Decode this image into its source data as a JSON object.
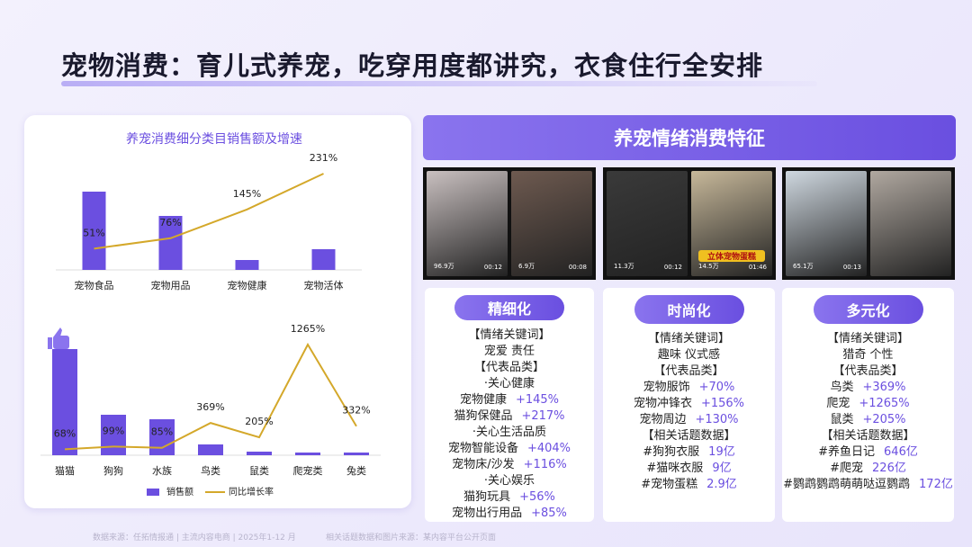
{
  "title": "宠物消费：育儿式养宠，吃穿用度都讲究，衣食住行全安排",
  "chart_data": [
    {
      "type": "bar",
      "title": "养宠消费细分类目销售额及增速",
      "categories": [
        "宠物食品",
        "宠物用品",
        "宠物健康",
        "宠物活体"
      ],
      "series": [
        {
          "type": "bar",
          "color": "#6b4fe0",
          "values": [
            87,
            60,
            11,
            23
          ]
        },
        {
          "type": "line",
          "color": "#d4a82a",
          "values": [
            51,
            76,
            145,
            231
          ],
          "value_labels": [
            "51%",
            "76%",
            "145%",
            "231%"
          ]
        }
      ]
    },
    {
      "type": "bar",
      "categories": [
        "猫猫",
        "狗狗",
        "水族",
        "鸟类",
        "鼠类",
        "爬宠类",
        "兔类"
      ],
      "legend": "bottom",
      "series": [
        {
          "name": "销售额",
          "type": "bar",
          "color": "#6b4fe0",
          "values": [
            118,
            45,
            40,
            12,
            4,
            3,
            3
          ]
        },
        {
          "name": "同比增长率",
          "type": "line",
          "color": "#d4a82a",
          "values": [
            68,
            99,
            85,
            369,
            205,
            1265,
            332
          ],
          "value_labels": [
            "68%",
            "99%",
            "85%",
            "369%",
            "205%",
            "1265%",
            "332%"
          ]
        }
      ]
    }
  ],
  "panel": {
    "title": "养宠情绪消费特征",
    "media": [
      [
        {
          "likes": "96.9万",
          "time": "00:12"
        },
        {
          "likes": "6.9万",
          "time": "00:08"
        }
      ],
      [
        {
          "likes": "11.3万",
          "time": "00:12"
        },
        {
          "caption": "立体宠物蛋糕",
          "likes": "14.5万",
          "time": "01:46"
        }
      ],
      [
        {
          "likes": "65.1万",
          "time": "00:13"
        },
        {}
      ]
    ],
    "cards": [
      {
        "title": "精细化",
        "rows": [
          "【情绪关键词】",
          "宠爱 责任",
          "【代表品类】",
          "·关心健康",
          [
            "宠物健康",
            "+145%"
          ],
          [
            "猫狗保健品",
            "+217%"
          ],
          "·关心生活品质",
          [
            "宠物智能设备",
            "+404%"
          ],
          [
            "宠物床/沙发",
            "+116%"
          ],
          "·关心娱乐",
          [
            "猫狗玩具",
            "+56%"
          ],
          [
            "宠物出行用品",
            "+85%"
          ]
        ]
      },
      {
        "title": "时尚化",
        "rows": [
          "【情绪关键词】",
          "趣味 仪式感",
          "【代表品类】",
          [
            "宠物服饰",
            "+70%"
          ],
          [
            "宠物冲锋衣",
            "+156%"
          ],
          [
            "宠物周边",
            "+130%"
          ],
          "【相关话题数据】",
          [
            "#狗狗衣服",
            "19亿"
          ],
          [
            "#猫咪衣服",
            "9亿"
          ],
          [
            "#宠物蛋糕",
            "2.9亿"
          ]
        ]
      },
      {
        "title": "多元化",
        "rows": [
          "【情绪关键词】",
          "猎奇 个性",
          "【代表品类】",
          [
            "鸟类",
            "+369%"
          ],
          [
            "爬宠",
            "+1265%"
          ],
          [
            "鼠类",
            "+205%"
          ],
          "【相关话题数据】",
          [
            "#养鱼日记",
            "646亿"
          ],
          [
            "#爬宠",
            "226亿"
          ],
          [
            "#鹦鹉鹦鹉萌萌哒逗鹦鹉",
            "172亿"
          ]
        ]
      }
    ]
  },
  "footer": [
    "数据来源：任拓情报通 | 主流内容电商 | 2025年1-12 月",
    "相关话题数据和图片来源：某内容平台公开页面"
  ]
}
